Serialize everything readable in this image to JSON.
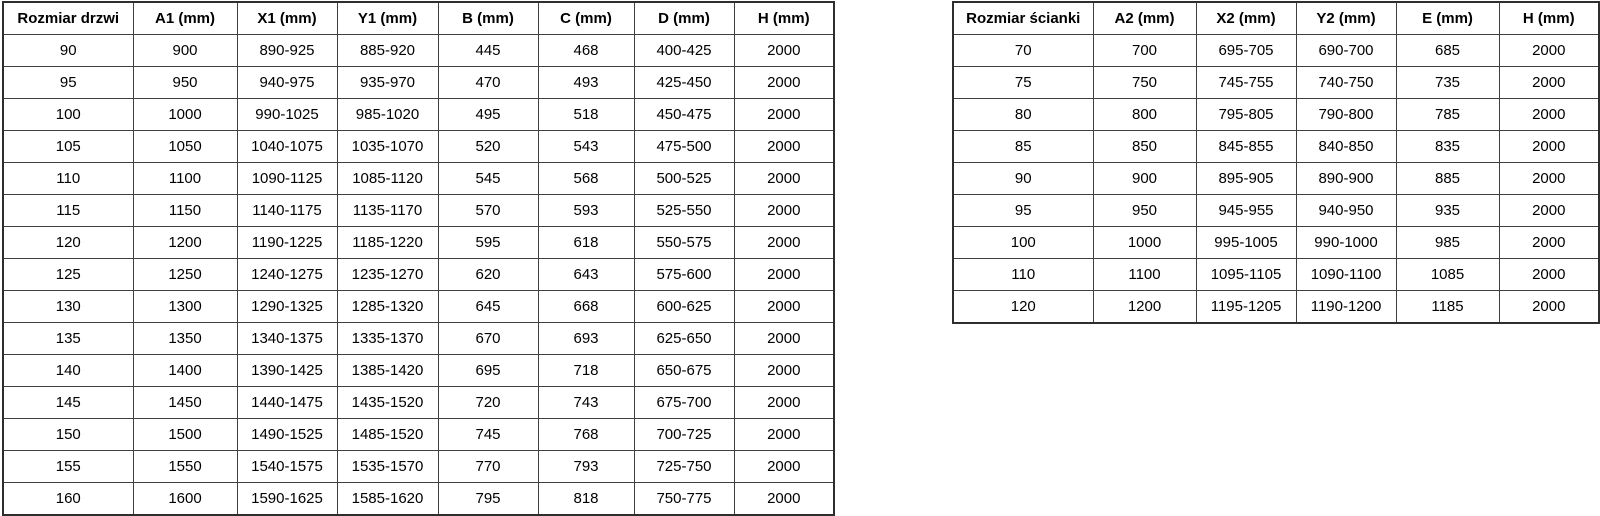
{
  "colors": {
    "background": "#ffffff",
    "border_inner": "#3f3f3f",
    "border_outer": "#2e2e2e",
    "text": "#000000"
  },
  "tables": {
    "doors": {
      "title": "door-sizes",
      "headers": [
        "Rozmiar drzwi",
        "A1 (mm)",
        "X1 (mm)",
        "Y1 (mm)",
        "B (mm)",
        "C (mm)",
        "D (mm)",
        "H (mm)"
      ],
      "rows": [
        [
          "90",
          "900",
          "890-925",
          "885-920",
          "445",
          "468",
          "400-425",
          "2000"
        ],
        [
          "95",
          "950",
          "940-975",
          "935-970",
          "470",
          "493",
          "425-450",
          "2000"
        ],
        [
          "100",
          "1000",
          "990-1025",
          "985-1020",
          "495",
          "518",
          "450-475",
          "2000"
        ],
        [
          "105",
          "1050",
          "1040-1075",
          "1035-1070",
          "520",
          "543",
          "475-500",
          "2000"
        ],
        [
          "110",
          "1100",
          "1090-1125",
          "1085-1120",
          "545",
          "568",
          "500-525",
          "2000"
        ],
        [
          "115",
          "1150",
          "1140-1175",
          "1135-1170",
          "570",
          "593",
          "525-550",
          "2000"
        ],
        [
          "120",
          "1200",
          "1190-1225",
          "1185-1220",
          "595",
          "618",
          "550-575",
          "2000"
        ],
        [
          "125",
          "1250",
          "1240-1275",
          "1235-1270",
          "620",
          "643",
          "575-600",
          "2000"
        ],
        [
          "130",
          "1300",
          "1290-1325",
          "1285-1320",
          "645",
          "668",
          "600-625",
          "2000"
        ],
        [
          "135",
          "1350",
          "1340-1375",
          "1335-1370",
          "670",
          "693",
          "625-650",
          "2000"
        ],
        [
          "140",
          "1400",
          "1390-1425",
          "1385-1420",
          "695",
          "718",
          "650-675",
          "2000"
        ],
        [
          "145",
          "1450",
          "1440-1475",
          "1435-1520",
          "720",
          "743",
          "675-700",
          "2000"
        ],
        [
          "150",
          "1500",
          "1490-1525",
          "1485-1520",
          "745",
          "768",
          "700-725",
          "2000"
        ],
        [
          "155",
          "1550",
          "1540-1575",
          "1535-1570",
          "770",
          "793",
          "725-750",
          "2000"
        ],
        [
          "160",
          "1600",
          "1590-1625",
          "1585-1620",
          "795",
          "818",
          "750-775",
          "2000"
        ]
      ]
    },
    "walls": {
      "title": "wall-panel-sizes",
      "headers": [
        "Rozmiar ścianki",
        "A2 (mm)",
        "X2 (mm)",
        "Y2 (mm)",
        "E (mm)",
        "H (mm)"
      ],
      "rows": [
        [
          "70",
          "700",
          "695-705",
          "690-700",
          "685",
          "2000"
        ],
        [
          "75",
          "750",
          "745-755",
          "740-750",
          "735",
          "2000"
        ],
        [
          "80",
          "800",
          "795-805",
          "790-800",
          "785",
          "2000"
        ],
        [
          "85",
          "850",
          "845-855",
          "840-850",
          "835",
          "2000"
        ],
        [
          "90",
          "900",
          "895-905",
          "890-900",
          "885",
          "2000"
        ],
        [
          "95",
          "950",
          "945-955",
          "940-950",
          "935",
          "2000"
        ],
        [
          "100",
          "1000",
          "995-1005",
          "990-1000",
          "985",
          "2000"
        ],
        [
          "110",
          "1100",
          "1095-1105",
          "1090-1100",
          "1085",
          "2000"
        ],
        [
          "120",
          "1200",
          "1195-1205",
          "1190-1200",
          "1185",
          "2000"
        ]
      ]
    }
  }
}
